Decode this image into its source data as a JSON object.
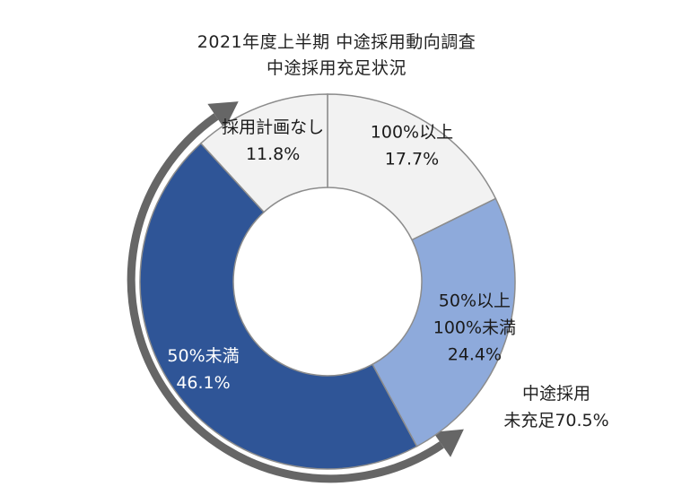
{
  "title": "2021年度上半期 中途採用動向調査",
  "subtitle": "中途採用充足状況",
  "colors": {
    "background": "#ffffff",
    "slice_border": "#8c8c8c",
    "arrow": "#666666",
    "label_dark": "#1a1a1a",
    "label_light": "#ffffff"
  },
  "chart_data": {
    "type": "pie",
    "variant": "donut",
    "title": "2021年度上半期 中途採用動向調査",
    "subtitle": "中途採用充足状況",
    "start_angle_deg": 0,
    "direction": "clockwise",
    "slices": [
      {
        "label_lines": [
          "100%以上"
        ],
        "value": 17.7,
        "value_label": "17.7%",
        "color": "#f2f2f2",
        "label_color": "dark"
      },
      {
        "label_lines": [
          "50%以上",
          "100%未満"
        ],
        "value": 24.4,
        "value_label": "24.4%",
        "color": "#8eaadb",
        "label_color": "dark"
      },
      {
        "label_lines": [
          "50%未満"
        ],
        "value": 46.1,
        "value_label": "46.1%",
        "color": "#2f5597",
        "label_color": "light"
      },
      {
        "label_lines": [
          "採用計画なし"
        ],
        "value": 11.8,
        "value_label": "11.8%",
        "color": "#f2f2f2",
        "label_color": "dark"
      }
    ],
    "annotation": {
      "lines": [
        "中途採用",
        "未充足70.5%"
      ],
      "arrow_type": "curved double-headed",
      "spans_slices": [
        "50%以上 100%未満",
        "50%未満"
      ]
    }
  }
}
